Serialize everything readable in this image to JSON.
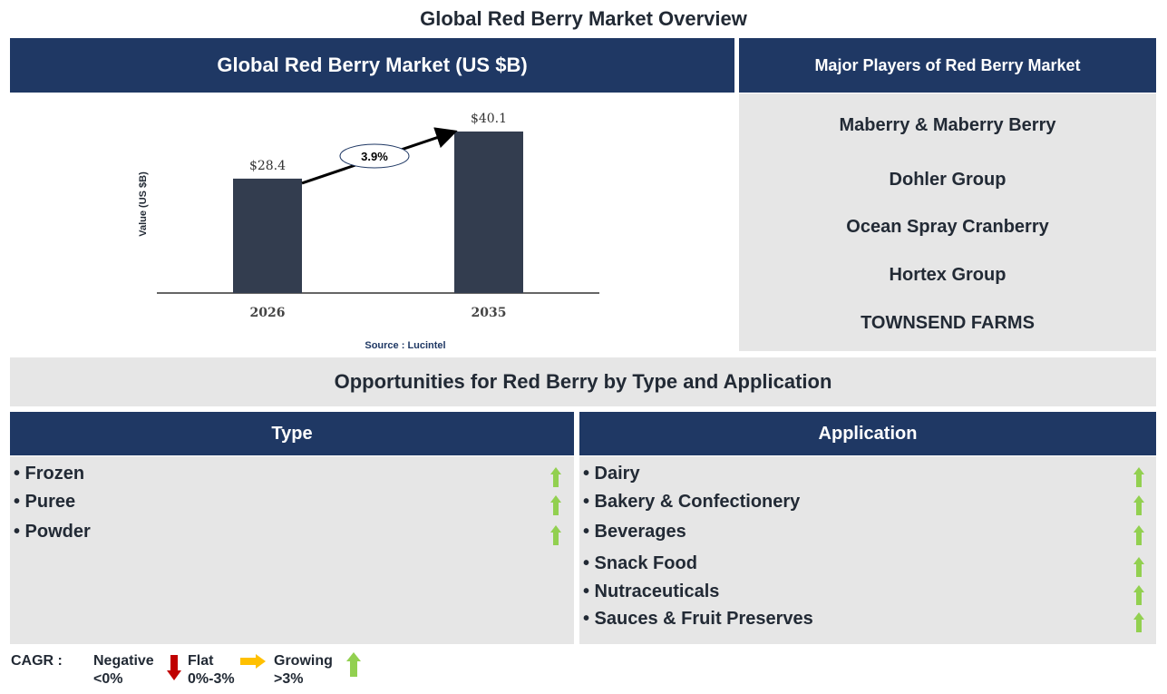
{
  "title": "Global Red Berry Market Overview",
  "left_header": "Global Red Berry Market (US $B)",
  "right_header": "Major Players of Red Berry Market",
  "players": [
    "Maberry & Maberry Berry",
    "Dohler Group",
    "Ocean Spray Cranberry",
    "Hortex Group",
    "TOWNSEND FARMS"
  ],
  "opportunities_title": "Opportunities for Red Berry by Type and Application",
  "type": {
    "header": "Type",
    "items": [
      "• Frozen",
      "• Puree",
      "• Powder"
    ],
    "trends": [
      "growing",
      "growing",
      "growing"
    ]
  },
  "application": {
    "header": "Application",
    "items": [
      "• Dairy",
      "• Bakery & Confectionery",
      "• Beverages",
      "• Snack Food",
      "• Nutraceuticals",
      "• Sauces & Fruit Preserves"
    ],
    "trends": [
      "growing",
      "growing",
      "growing",
      "growing",
      "growing",
      "growing"
    ]
  },
  "legend": {
    "label": "CAGR :",
    "negative": "Negative",
    "negative_range": "<0%",
    "flat": "Flat",
    "flat_range": "0%-3%",
    "growing": "Growing",
    "growing_range": ">3%"
  },
  "colors": {
    "navy": "#1f3864",
    "bar": "#333d4f",
    "panel": "#e6e6e6",
    "growing": "#92d050",
    "flat": "#ffc000",
    "negative": "#c00000"
  },
  "chart_data": {
    "type": "bar",
    "categories": [
      "2026",
      "2035"
    ],
    "values": [
      28.4,
      40.1
    ],
    "data_labels": [
      "$28.4",
      "$40.1"
    ],
    "ylabel": "Value (US $B)",
    "cagr_label": "3.9%",
    "source": "Source : Lucintel",
    "grid": false
  }
}
